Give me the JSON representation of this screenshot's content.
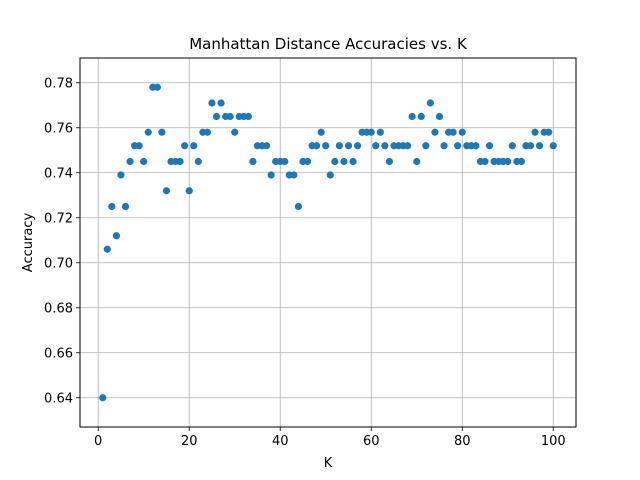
{
  "chart_data": {
    "type": "scatter",
    "title": "Manhattan Distance Accuracies vs. K",
    "xlabel": "K",
    "ylabel": "Accuracy",
    "xlim": [
      -4,
      105
    ],
    "ylim": [
      0.627,
      0.791
    ],
    "xticks": [
      0,
      20,
      40,
      60,
      80,
      100
    ],
    "xtick_labels": [
      "0",
      "20",
      "40",
      "60",
      "80",
      "100"
    ],
    "yticks": [
      0.64,
      0.66,
      0.68,
      0.7,
      0.72,
      0.74,
      0.76,
      0.78
    ],
    "ytick_labels": [
      "0.64",
      "0.66",
      "0.68",
      "0.70",
      "0.72",
      "0.74",
      "0.76",
      "0.78"
    ],
    "grid": true,
    "marker_color": "#1f77b4",
    "x": [
      1,
      2,
      3,
      4,
      5,
      6,
      7,
      8,
      9,
      10,
      11,
      12,
      13,
      14,
      15,
      16,
      17,
      18,
      19,
      20,
      21,
      22,
      23,
      24,
      25,
      26,
      27,
      28,
      29,
      30,
      31,
      32,
      33,
      34,
      35,
      36,
      37,
      38,
      39,
      40,
      41,
      42,
      43,
      44,
      45,
      46,
      47,
      48,
      49,
      50,
      51,
      52,
      53,
      54,
      55,
      56,
      57,
      58,
      59,
      60,
      61,
      62,
      63,
      64,
      65,
      66,
      67,
      68,
      69,
      70,
      71,
      72,
      73,
      74,
      75,
      76,
      77,
      78,
      79,
      80,
      81,
      82,
      83,
      84,
      85,
      86,
      87,
      88,
      89,
      90,
      91,
      92,
      93,
      94,
      95,
      96,
      97,
      98,
      99,
      100
    ],
    "y": [
      0.64,
      0.706,
      0.725,
      0.712,
      0.739,
      0.725,
      0.745,
      0.752,
      0.752,
      0.745,
      0.758,
      0.778,
      0.778,
      0.758,
      0.732,
      0.745,
      0.745,
      0.745,
      0.752,
      0.732,
      0.752,
      0.745,
      0.758,
      0.758,
      0.771,
      0.765,
      0.771,
      0.765,
      0.765,
      0.758,
      0.765,
      0.765,
      0.765,
      0.745,
      0.752,
      0.752,
      0.752,
      0.739,
      0.745,
      0.745,
      0.745,
      0.739,
      0.739,
      0.725,
      0.745,
      0.745,
      0.752,
      0.752,
      0.758,
      0.752,
      0.739,
      0.745,
      0.752,
      0.745,
      0.752,
      0.745,
      0.752,
      0.758,
      0.758,
      0.758,
      0.752,
      0.758,
      0.752,
      0.745,
      0.752,
      0.752,
      0.752,
      0.752,
      0.765,
      0.745,
      0.765,
      0.752,
      0.771,
      0.758,
      0.765,
      0.752,
      0.758,
      0.758,
      0.752,
      0.758,
      0.752,
      0.752,
      0.752,
      0.745,
      0.745,
      0.752,
      0.745,
      0.745,
      0.745,
      0.745,
      0.752,
      0.745,
      0.745,
      0.752,
      0.752,
      0.758,
      0.752,
      0.758,
      0.758,
      0.752
    ]
  }
}
